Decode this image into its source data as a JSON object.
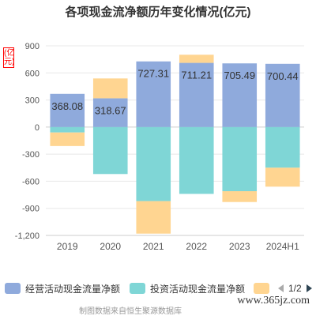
{
  "colors": {
    "operating": "#8faadc",
    "investing": "#7fd6d6",
    "financing": "#ffd591",
    "axis_text": "#555555",
    "grid": "#e8e8e8"
  },
  "unit_label": "(亿元)",
  "legend": {
    "items": [
      {
        "label": "经营活动现金流量净额",
        "color_key": "operating",
        "icon": "legend-swatch"
      },
      {
        "label": "投资活动现金流量净额",
        "color_key": "investing",
        "icon": "legend-swatch"
      },
      {
        "label": "",
        "color_key": "financing",
        "icon": "legend-swatch"
      }
    ],
    "page": "1/2"
  },
  "source": "制图数据来自恒生聚源数据库",
  "watermark": "www.365jz.com",
  "chart_data": {
    "type": "bar",
    "stacked": true,
    "title": "各项现金流净额历年变化情况(亿元)",
    "xlabel": "",
    "ylabel": "(亿元)",
    "categories": [
      "2019",
      "2020",
      "2021",
      "2022",
      "2023",
      "2024H1"
    ],
    "ylim": [
      -1200,
      900
    ],
    "yticks": [
      900,
      600,
      300,
      0,
      -300,
      -600,
      -900,
      -1200
    ],
    "ytick_labels": [
      "900",
      "600",
      "300",
      "0",
      "-300",
      "-600",
      "-900",
      "-1,200"
    ],
    "grid": true,
    "legend_position": "bottom",
    "series": [
      {
        "name": "经营活动现金流量净额",
        "color_key": "operating",
        "values": [
          368.08,
          318.67,
          727.31,
          711.21,
          705.49,
          700.44
        ],
        "labels": [
          "368.08",
          "318.67",
          "727.31",
          "711.21",
          "705.49",
          "700.44"
        ]
      },
      {
        "name": "投资活动现金流量净额",
        "color_key": "investing",
        "values": [
          -60,
          -520,
          -820,
          -740,
          -710,
          -450
        ]
      },
      {
        "color_key": "financing",
        "values": [
          -150,
          220,
          -360,
          90,
          -120,
          -210
        ]
      }
    ]
  }
}
